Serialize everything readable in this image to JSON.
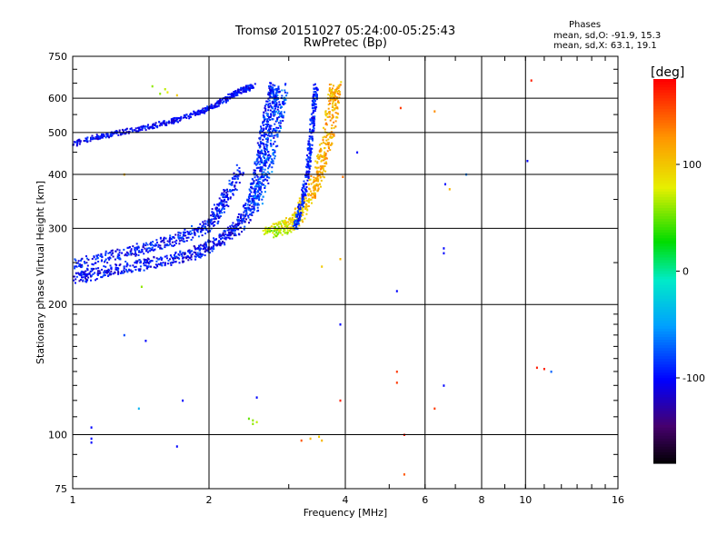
{
  "header": {
    "title_line1": "Tromsø 20151027 05:24:00-05:25:43",
    "title_line2": "RwPretec (Bp)",
    "stats_heading": "Phases",
    "stats_o": "mean, sd,O: -91.9, 15.3",
    "stats_x": "mean, sd,X:  63.1, 19.1"
  },
  "chart_data": {
    "type": "scatter",
    "xlabel": "Frequency [MHz]",
    "ylabel": "Stationary phase Virtual Height [km]",
    "x_scale": "log",
    "y_scale": "log",
    "xlim": [
      1,
      16
    ],
    "ylim": [
      75,
      750
    ],
    "x_ticks": [
      {
        "value": 1,
        "label": "1"
      },
      {
        "value": 2,
        "label": "2"
      },
      {
        "value": 4,
        "label": "4"
      },
      {
        "value": 6,
        "label": "6"
      },
      {
        "value": 8,
        "label": "8"
      },
      {
        "value": 10,
        "label": "10"
      },
      {
        "value": 16,
        "label": "16"
      }
    ],
    "x_grid": [
      2,
      4,
      6,
      8,
      10
    ],
    "y_ticks": [
      {
        "value": 75,
        "label": "75"
      },
      {
        "value": 100,
        "label": "100"
      },
      {
        "value": 200,
        "label": "200"
      },
      {
        "value": 300,
        "label": "300"
      },
      {
        "value": 400,
        "label": "400"
      },
      {
        "value": 500,
        "label": "500"
      },
      {
        "value": 600,
        "label": "600"
      },
      {
        "value": 750,
        "label": "750"
      }
    ],
    "y_grid": [
      100,
      200,
      300,
      400,
      500,
      600
    ],
    "grid": true,
    "colorbar": {
      "label": "[deg]",
      "range": [
        -180,
        180
      ],
      "ticks": [
        {
          "value": 100,
          "label": "100"
        },
        {
          "value": 0,
          "label": "0"
        },
        {
          "value": -100,
          "label": "-100"
        }
      ]
    },
    "traces": [
      {
        "points": [
          [
            1.0,
            228,
            -100
          ],
          [
            1.1,
            235,
            -100
          ],
          [
            1.25,
            242,
            -100
          ],
          [
            1.45,
            248,
            -100
          ],
          [
            1.65,
            254,
            -100
          ],
          [
            1.85,
            262,
            -100
          ],
          [
            2.0,
            272,
            -100
          ],
          [
            2.15,
            285,
            -100
          ],
          [
            2.3,
            300,
            -100
          ],
          [
            2.4,
            320,
            -95
          ],
          [
            2.5,
            345,
            -95
          ],
          [
            2.55,
            380,
            -95
          ],
          [
            2.6,
            430,
            -90
          ],
          [
            2.65,
            480,
            -90
          ],
          [
            2.7,
            540,
            -90
          ],
          [
            2.75,
            600,
            -90
          ],
          [
            2.8,
            640,
            -90
          ]
        ],
        "width": 0.028,
        "angle": -100,
        "spread": 25
      },
      {
        "points": [
          [
            1.0,
            248,
            -95
          ],
          [
            1.2,
            258,
            -95
          ],
          [
            1.4,
            268,
            -95
          ],
          [
            1.6,
            278,
            -95
          ],
          [
            1.8,
            290,
            -95
          ],
          [
            2.0,
            305,
            -95
          ],
          [
            2.1,
            330,
            -95
          ],
          [
            2.2,
            360,
            -95
          ],
          [
            2.35,
            410,
            -95
          ]
        ],
        "width": 0.025,
        "angle": -95,
        "spread": 25
      },
      {
        "points": [
          [
            1.0,
            470,
            -100
          ],
          [
            1.15,
            490,
            -100
          ],
          [
            1.35,
            505,
            -100
          ],
          [
            1.6,
            525,
            -100
          ],
          [
            1.85,
            550,
            -100
          ],
          [
            2.05,
            575,
            -100
          ],
          [
            2.2,
            600,
            -100
          ],
          [
            2.35,
            625,
            -100
          ],
          [
            2.5,
            640,
            -100
          ]
        ],
        "width": 0.012,
        "angle": -100,
        "spread": 20
      },
      {
        "points": [
          [
            2.55,
            330,
            -80
          ],
          [
            2.65,
            400,
            -80
          ],
          [
            2.75,
            470,
            -80
          ],
          [
            2.85,
            560,
            -80
          ],
          [
            2.9,
            630,
            -80
          ]
        ],
        "width": 0.03,
        "angle": -80,
        "spread": 30
      },
      {
        "points": [
          [
            2.7,
            295,
            60
          ],
          [
            2.9,
            300,
            75
          ],
          [
            3.05,
            310,
            90
          ],
          [
            3.2,
            330,
            100
          ],
          [
            3.35,
            360,
            110
          ],
          [
            3.5,
            400,
            115
          ],
          [
            3.6,
            450,
            115
          ],
          [
            3.7,
            520,
            115
          ],
          [
            3.78,
            600,
            115
          ],
          [
            3.8,
            640,
            115
          ]
        ],
        "width": 0.03,
        "angle": 100,
        "spread": 25
      },
      {
        "points": [
          [
            3.1,
            300,
            -90
          ],
          [
            3.2,
            340,
            -90
          ],
          [
            3.3,
            400,
            -90
          ],
          [
            3.35,
            470,
            -90
          ],
          [
            3.4,
            560,
            -90
          ],
          [
            3.45,
            640,
            -90
          ]
        ],
        "width": 0.012,
        "angle": -90,
        "spread": 20
      }
    ],
    "isolated_points": [
      [
        1.56,
        615,
        60
      ],
      [
        1.62,
        620,
        80
      ],
      [
        1.7,
        610,
        100
      ],
      [
        1.6,
        630,
        70
      ],
      [
        1.5,
        640,
        60
      ],
      [
        5.3,
        570,
        160
      ],
      [
        6.3,
        560,
        130
      ],
      [
        10.3,
        660,
        170
      ],
      [
        10.1,
        430,
        -100
      ],
      [
        7.4,
        400,
        -60
      ],
      [
        6.65,
        380,
        -100
      ],
      [
        6.8,
        370,
        110
      ],
      [
        4.25,
        450,
        -100
      ],
      [
        6.6,
        270,
        -100
      ],
      [
        6.6,
        263,
        -100
      ],
      [
        3.9,
        255,
        110
      ],
      [
        3.55,
        245,
        100
      ],
      [
        5.2,
        215,
        -100
      ],
      [
        3.9,
        180,
        -100
      ],
      [
        1.3,
        170,
        -80
      ],
      [
        1.42,
        220,
        60
      ],
      [
        1.3,
        400,
        110
      ],
      [
        1.45,
        165,
        -100
      ],
      [
        5.2,
        140,
        160
      ],
      [
        5.2,
        132,
        160
      ],
      [
        6.6,
        130,
        -100
      ],
      [
        10.6,
        143,
        170
      ],
      [
        11.0,
        142,
        170
      ],
      [
        11.4,
        140,
        -70
      ],
      [
        3.9,
        120,
        170
      ],
      [
        2.55,
        122,
        -100
      ],
      [
        1.75,
        120,
        -100
      ],
      [
        1.4,
        115,
        -40
      ],
      [
        2.5,
        108,
        60
      ],
      [
        2.5,
        106,
        60
      ],
      [
        2.55,
        107,
        70
      ],
      [
        2.45,
        109,
        50
      ],
      [
        1.1,
        104,
        -100
      ],
      [
        1.1,
        98,
        -100
      ],
      [
        1.1,
        96,
        -100
      ],
      [
        1.7,
        94,
        -100
      ],
      [
        3.2,
        97,
        150
      ],
      [
        3.35,
        98,
        110
      ],
      [
        3.5,
        99,
        100
      ],
      [
        3.55,
        97,
        110
      ],
      [
        5.4,
        100,
        170
      ],
      [
        6.3,
        115,
        160
      ],
      [
        5.4,
        81,
        150
      ],
      [
        3.95,
        395,
        140
      ]
    ]
  }
}
